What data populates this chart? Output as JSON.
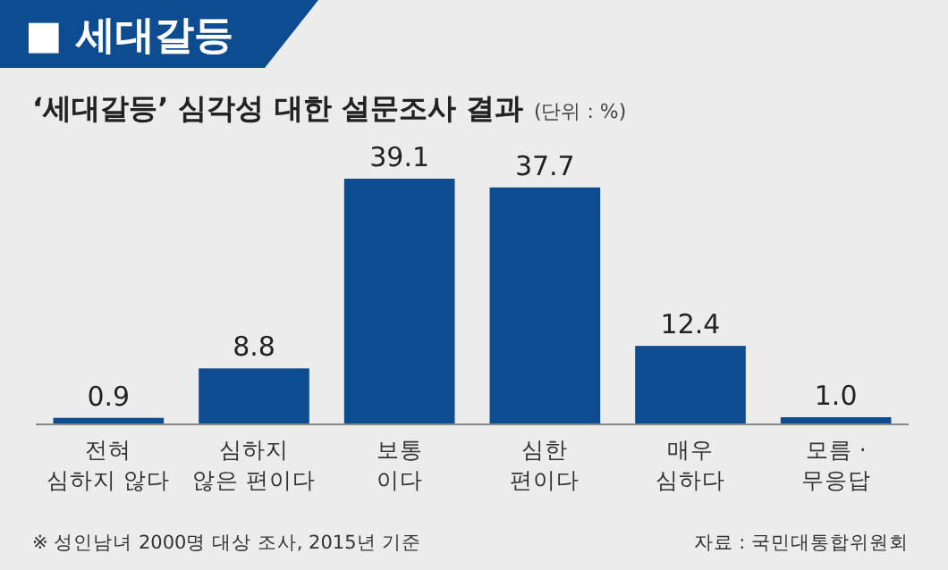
{
  "chart_data": {
    "type": "bar",
    "title": "■ 세대갈등",
    "subtitle": "‘세대갈등’ 심각성 대한 설문조사 결과",
    "annotations": [
      "(단위 : %)",
      "※ 성인남녀 2000명 대상 조사, 2015년 기준",
      "자료 : 국민대통합위원회"
    ],
    "categories": [
      "전혀\n심하지 않다",
      "심하지\n않은 편이다",
      "보통\n이다",
      "심한\n편이다",
      "매우\n심하다",
      "모름 ·\n무응답"
    ],
    "values": [
      0.9,
      8.8,
      39.1,
      37.7,
      12.4,
      1.0
    ],
    "color": "#0e4c92",
    "value_labels": [
      "0.9",
      "8.8",
      "39.1",
      "37.7",
      "12.4",
      "1.0"
    ]
  }
}
